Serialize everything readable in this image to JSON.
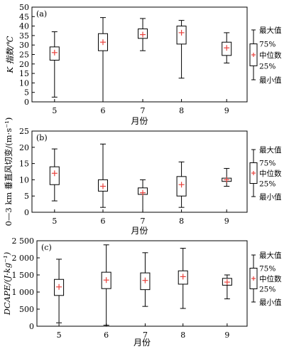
{
  "chart_data": [
    {
      "type": "box",
      "panel_label": "(a)",
      "ylabel": "K 指数/℃",
      "xlabel": "月份",
      "categories": [
        "5",
        "6",
        "7",
        "8",
        "9"
      ],
      "ylim": [
        0,
        50
      ],
      "yticks": [
        0,
        5,
        10,
        15,
        20,
        25,
        30,
        35,
        40,
        45,
        50
      ],
      "yticklabels": [
        "0",
        "5",
        "10",
        "15",
        "20",
        "25",
        "30",
        "35",
        "40",
        "45",
        "50"
      ],
      "boxes": [
        {
          "min": 2.5,
          "q1": 22,
          "median": 26,
          "q3": 29,
          "max": 37
        },
        {
          "min": 0,
          "q1": 27,
          "median": 31.5,
          "q3": 36,
          "max": 44.5
        },
        {
          "min": 27,
          "q1": 33.5,
          "median": 35.5,
          "q3": 38.5,
          "max": 44
        },
        {
          "min": 12.5,
          "q1": 30.5,
          "median": 36.5,
          "q3": 40,
          "max": 43
        },
        {
          "min": 20.5,
          "q1": 24.5,
          "median": 28.5,
          "q3": 31.5,
          "max": 36.5
        }
      ]
    },
    {
      "type": "box",
      "panel_label": "(b)",
      "ylabel": "0—3 km 垂直风切变/(m·s⁻¹)",
      "xlabel": "月份",
      "categories": [
        "5",
        "6",
        "7",
        "8",
        "9"
      ],
      "ylim": [
        0,
        25
      ],
      "yticks": [
        0,
        5,
        10,
        15,
        20,
        25
      ],
      "yticklabels": [
        "0",
        "5",
        "10",
        "15",
        "20",
        "25"
      ],
      "boxes": [
        {
          "min": 3.5,
          "q1": 8.5,
          "median": 12,
          "q3": 14,
          "max": 19.5
        },
        {
          "min": 1.5,
          "q1": 6.5,
          "median": 8,
          "q3": 10,
          "max": 21
        },
        {
          "min": 0,
          "q1": 5.5,
          "median": 6,
          "q3": 7.5,
          "max": 10
        },
        {
          "min": 1.5,
          "q1": 5,
          "median": 8.5,
          "q3": 11,
          "max": 15.5
        },
        {
          "min": 8,
          "q1": 9.5,
          "median": 10,
          "q3": 10.5,
          "max": 13.5
        }
      ]
    },
    {
      "type": "box",
      "panel_label": "(c)",
      "ylabel": "DCAPE/(J·kg⁻¹)",
      "xlabel": "月份",
      "categories": [
        "5",
        "6",
        "7",
        "8",
        "9"
      ],
      "ylim": [
        0,
        2500
      ],
      "yticks": [
        0,
        500,
        1000,
        1500,
        2000,
        2500
      ],
      "yticklabels": [
        "0",
        "500",
        "1 000",
        "1 500",
        "2 000",
        "2 500"
      ],
      "boxes": [
        {
          "min": 100,
          "q1": 900,
          "median": 1150,
          "q3": 1370,
          "max": 1960
        },
        {
          "min": 30,
          "q1": 1100,
          "median": 1350,
          "q3": 1580,
          "max": 2380
        },
        {
          "min": 580,
          "q1": 1070,
          "median": 1340,
          "q3": 1560,
          "max": 2150
        },
        {
          "min": 520,
          "q1": 1230,
          "median": 1450,
          "q3": 1620,
          "max": 2280
        },
        {
          "min": 800,
          "q1": 1200,
          "median": 1290,
          "q3": 1400,
          "max": 1500
        }
      ]
    }
  ],
  "legend": {
    "items": [
      "最大值",
      "75%",
      "中位数",
      "25%",
      "最小值"
    ]
  },
  "colors": {
    "box_line": "#000000",
    "median_marker": "#e8413c",
    "background": "#ffffff"
  }
}
